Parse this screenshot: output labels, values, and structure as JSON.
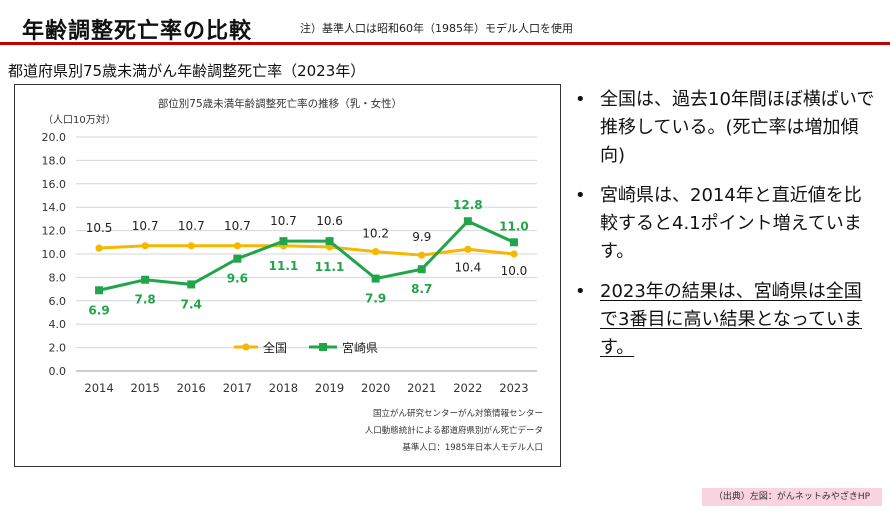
{
  "header": {
    "title": "年齢調整死亡率の比較",
    "note": "注）基準人口は昭和60年（1985年）モデル人口を使用"
  },
  "subtitle": "都道府県別75歳未満がん年齢調整死亡率（2023年）",
  "chart_data": {
    "type": "line",
    "title": "部位別75歳未満年齢調整死亡率の推移（乳・女性）",
    "ylabel": "（人口10万対）",
    "xlabel": "",
    "categories": [
      "2014",
      "2015",
      "2016",
      "2017",
      "2018",
      "2019",
      "2020",
      "2021",
      "2022",
      "2023"
    ],
    "ylim": [
      0,
      20
    ],
    "yticks": [
      "20.0",
      "18.0",
      "16.0",
      "14.0",
      "12.0",
      "10.0",
      "8.0",
      "6.0",
      "4.0",
      "2.0",
      "0.0"
    ],
    "grid": true,
    "legend_position": "bottom-center",
    "series": [
      {
        "name": "全国",
        "color": "#f5b800",
        "marker": "circle",
        "values": [
          10.5,
          10.7,
          10.7,
          10.7,
          10.7,
          10.6,
          10.2,
          9.9,
          10.4,
          10.0
        ],
        "labels": [
          "10.5",
          "10.7",
          "10.7",
          "10.7",
          "10.7",
          "10.6",
          "10.2",
          "9.9",
          "10.4",
          "10.0"
        ],
        "label_color": "#222222"
      },
      {
        "name": "宮崎県",
        "color": "#22a54a",
        "marker": "square",
        "values": [
          6.9,
          7.8,
          7.4,
          9.6,
          11.1,
          11.1,
          7.9,
          8.7,
          12.8,
          11.0
        ],
        "labels": [
          "6.9",
          "7.8",
          "7.4",
          "9.6",
          "11.1",
          "11.1",
          "7.9",
          "8.7",
          "12.8",
          "11.0"
        ],
        "label_color": "#22a54a"
      }
    ],
    "source_notes": [
      "国立がん研究センターがん対策情報センター",
      "人口動態統計による都道府県別がん死亡データ",
      "基準人口：1985年日本人モデル人口"
    ]
  },
  "bullets": [
    {
      "text": "全国は、過去10年間ほぼ横ばいで推移している。(死亡率は増加傾向)",
      "emphasis": false
    },
    {
      "text": "宮崎県は、2014年と直近値を比較すると4.1ポイント増えています。",
      "emphasis": false
    },
    {
      "text": "2023年の結果は、宮崎県は全国で3番目に高い結果となっています。",
      "emphasis": true
    }
  ],
  "bullet_glyph": "•",
  "source": "（出典）左図：がんネットみやざきHP"
}
